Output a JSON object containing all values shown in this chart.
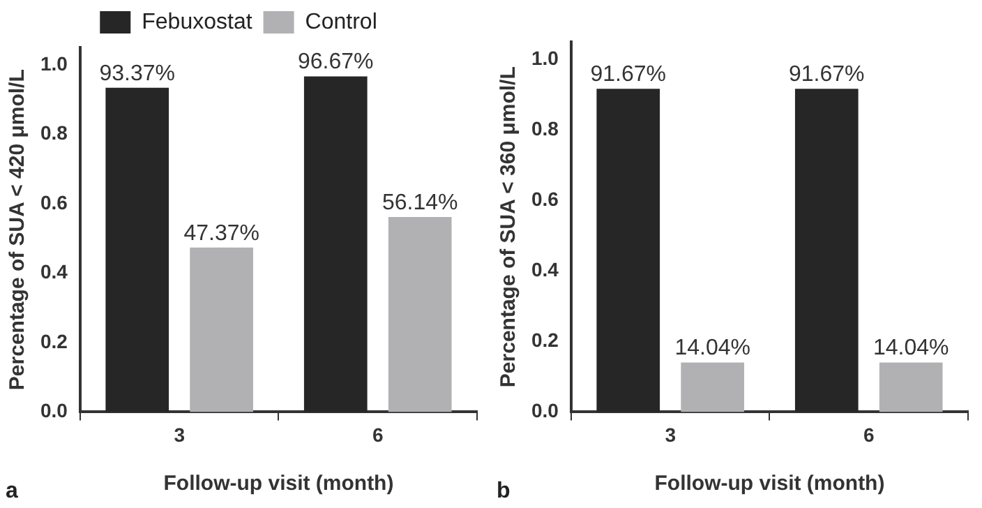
{
  "chart_data": [
    {
      "type": "bar",
      "categories": [
        "3",
        "6"
      ],
      "xlabel": "Follow-up visit (month)",
      "ylabel": "Percentage of SUA < 420 μmol/L",
      "legend": "top",
      "annotations": [
        "a"
      ],
      "ylim": [
        0,
        1.05
      ],
      "yticks": [
        {
          "value": 0,
          "label": "0.0"
        },
        {
          "value": 0.2,
          "label": "0.2"
        },
        {
          "value": 0.4,
          "label": "0.4"
        },
        {
          "value": 0.6,
          "label": "0.6"
        },
        {
          "value": 0.8,
          "label": "0.8"
        },
        {
          "value": 1,
          "label": "1.0"
        }
      ],
      "series": [
        {
          "name": "Febuxostat",
          "color": "#262626",
          "values": [
            0.9337,
            0.9667
          ],
          "value_labels": [
            "93.37%",
            "96.67%"
          ]
        },
        {
          "name": "Control",
          "color": "#b1b1b4",
          "values": [
            0.4737,
            0.5614
          ],
          "value_labels": [
            "47.37%",
            "56.14%"
          ]
        }
      ]
    },
    {
      "type": "bar",
      "categories": [
        "3",
        "6"
      ],
      "xlabel": "Follow-up visit (month)",
      "ylabel": "Percentage of SUA < 360 μmol/L",
      "annotations": [
        "b"
      ],
      "ylim": [
        0,
        1.05
      ],
      "yticks": [
        {
          "value": 0,
          "label": "0.0"
        },
        {
          "value": 0.2,
          "label": "0.2"
        },
        {
          "value": 0.4,
          "label": "0.4"
        },
        {
          "value": 0.6,
          "label": "0.6"
        },
        {
          "value": 0.8,
          "label": "0.8"
        },
        {
          "value": 1,
          "label": "1.0"
        }
      ],
      "series": [
        {
          "color": "#262626",
          "values": [
            0.9167,
            0.9167
          ],
          "value_labels": [
            "91.67%",
            "91.67%"
          ]
        },
        {
          "color": "#b1b1b4",
          "values": [
            0.1404,
            0.1404
          ],
          "value_labels": [
            "14.04%",
            "14.04%"
          ]
        }
      ]
    }
  ]
}
